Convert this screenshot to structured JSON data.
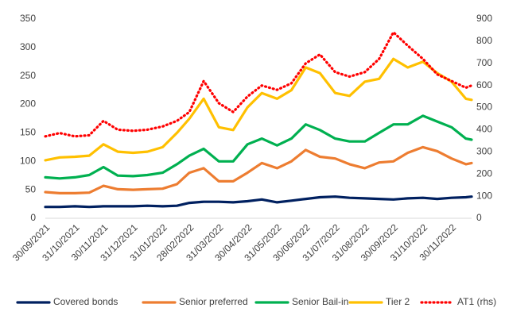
{
  "chart_data": {
    "type": "line",
    "x": [
      "30/09/2021",
      "15/10/2021",
      "31/10/2021",
      "15/11/2021",
      "30/11/2021",
      "15/12/2021",
      "31/12/2021",
      "15/01/2022",
      "31/01/2022",
      "15/02/2022",
      "28/02/2022",
      "15/03/2022",
      "31/03/2022",
      "15/04/2022",
      "30/04/2022",
      "15/05/2022",
      "31/05/2022",
      "15/06/2022",
      "30/06/2022",
      "15/07/2022",
      "31/07/2022",
      "15/08/2022",
      "31/08/2022",
      "15/09/2022",
      "30/09/2022",
      "15/10/2022",
      "31/10/2022",
      "15/11/2022",
      "30/11/2022",
      "15/12/2022",
      "21/12/2022"
    ],
    "xlim": [
      "30/09/2021",
      "21/12/2022"
    ],
    "xticks": [
      "30/09/2021",
      "31/10/2021",
      "30/11/2021",
      "31/12/2021",
      "31/01/2022",
      "28/02/2022",
      "31/03/2022",
      "30/04/2022",
      "31/05/2022",
      "30/06/2022",
      "31/07/2022",
      "31/08/2022",
      "30/09/2022",
      "31/10/2022",
      "30/11/2022"
    ],
    "ylim": [
      0,
      350
    ],
    "yticks": [
      0,
      50,
      100,
      150,
      200,
      250,
      300,
      350
    ],
    "y2lim": [
      0,
      900
    ],
    "y2ticks": [
      0,
      100,
      200,
      300,
      400,
      500,
      600,
      700,
      800,
      900
    ],
    "legend": "bottom",
    "series": [
      {
        "name": "Covered bonds",
        "color": "#002060",
        "values": [
          20,
          20,
          21,
          20,
          21,
          21,
          21,
          22,
          21,
          22,
          27,
          29,
          29,
          28,
          30,
          33,
          28,
          31,
          34,
          37,
          38,
          36,
          35,
          34,
          33,
          35,
          36,
          34,
          36,
          37,
          38
        ]
      },
      {
        "name": "Senior preferred",
        "color": "#ed7d31",
        "values": [
          46,
          44,
          44,
          45,
          57,
          51,
          50,
          51,
          52,
          60,
          80,
          88,
          65,
          65,
          80,
          97,
          88,
          100,
          120,
          108,
          105,
          95,
          88,
          98,
          100,
          115,
          125,
          118,
          105,
          95,
          97
        ]
      },
      {
        "name": "Senior Bail-in",
        "color": "#00b050",
        "values": [
          72,
          70,
          72,
          76,
          90,
          75,
          74,
          76,
          80,
          95,
          110,
          122,
          100,
          100,
          130,
          140,
          128,
          140,
          165,
          155,
          140,
          135,
          135,
          150,
          165,
          165,
          180,
          170,
          160,
          140,
          138
        ]
      },
      {
        "name": "Tier 2",
        "color": "#ffc000",
        "values": [
          102,
          107,
          108,
          110,
          130,
          117,
          115,
          117,
          125,
          150,
          175,
          210,
          160,
          155,
          195,
          220,
          210,
          225,
          265,
          255,
          220,
          215,
          240,
          245,
          280,
          265,
          275,
          255,
          240,
          210,
          208
        ]
      },
      {
        "name": "AT1 (rhs)",
        "color": "#ff0000",
        "dash": "dotted",
        "axis": "y2",
        "values": [
          370,
          385,
          370,
          375,
          440,
          400,
          395,
          400,
          415,
          440,
          480,
          620,
          520,
          480,
          550,
          600,
          580,
          610,
          700,
          740,
          660,
          640,
          660,
          720,
          840,
          780,
          720,
          650,
          620,
          590,
          600
        ]
      }
    ]
  }
}
